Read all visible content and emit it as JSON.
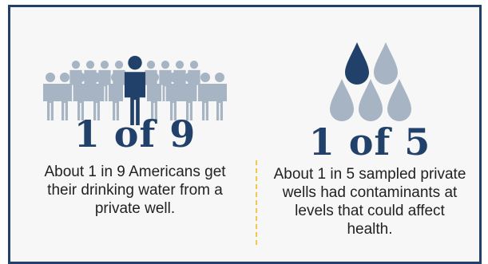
{
  "colors": {
    "frame": "#22416a",
    "accent_figure": "#22416a",
    "light_figure": "#a7b4c4",
    "drop_dark": "#22416a",
    "drop_light": "#a7b4c4",
    "divider": "#f2c84b"
  },
  "left": {
    "icon": "people-crowd-icon",
    "stat": "1 of 9",
    "caption_lines": [
      "About 1 in 9 Americans get",
      "their drinking water from a",
      "private well."
    ]
  },
  "right": {
    "icon": "water-drops-icon",
    "stat": "1 of 5",
    "caption_lines": [
      "About 1 in 5 sampled private",
      "wells had contaminants at",
      "levels that could affect",
      "health."
    ]
  }
}
